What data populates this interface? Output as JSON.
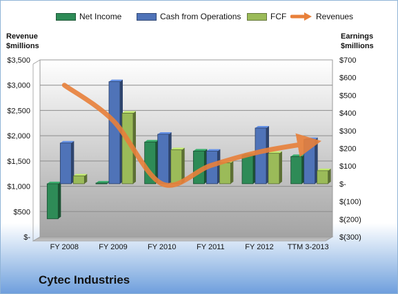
{
  "company": "Cytec Industries",
  "chart_data": {
    "type": "bar",
    "categories": [
      "FY 2008",
      "FY 2009",
      "FY 2010",
      "FY 2011",
      "FY 2012",
      "TTM 3-2013"
    ],
    "series": [
      {
        "name": "Net Income",
        "axis": "right",
        "kind": "bar",
        "color": "#2e8b57",
        "values": [
          -198,
          4,
          236,
          185,
          160,
          154
        ]
      },
      {
        "name": "Cash from Operations",
        "axis": "right",
        "kind": "bar",
        "color": "#4f73b8",
        "values": [
          230,
          577,
          280,
          184,
          315,
          250
        ]
      },
      {
        "name": "FCF",
        "axis": "right",
        "kind": "bar",
        "color": "#9bbb59",
        "values": [
          44,
          399,
          192,
          118,
          172,
          74
        ]
      },
      {
        "name": "Revenues",
        "axis": "left",
        "kind": "line",
        "color": "#e8803a",
        "values": [
          3000,
          2300,
          1050,
          1410,
          1680,
          1850
        ]
      }
    ],
    "left_axis": {
      "label": [
        "Revenue",
        "$millions"
      ],
      "range": [
        0,
        3500
      ],
      "ticks": [
        0,
        500,
        1000,
        1500,
        2000,
        2500,
        3000,
        3500
      ],
      "tick_labels": [
        "$-",
        "$500",
        "$1,000",
        "$1,500",
        "$2,000",
        "$2,500",
        "$3,000",
        "$3,500"
      ]
    },
    "right_axis": {
      "label": [
        "Earnings",
        "$millions"
      ],
      "range": [
        -300,
        700
      ],
      "ticks": [
        -300,
        -200,
        -100,
        0,
        100,
        200,
        300,
        400,
        500,
        600,
        700
      ],
      "tick_labels": [
        "$(300)",
        "$(200)",
        "$(100)",
        "$-",
        "$100",
        "$200",
        "$300",
        "$400",
        "$500",
        "$600",
        "$700"
      ]
    },
    "legend_position": "top",
    "grid": true
  },
  "colors": {
    "plot_background_top": "#ffffff",
    "plot_background_bottom": "#a9a9a9",
    "gridline": "#8c8c8c"
  }
}
